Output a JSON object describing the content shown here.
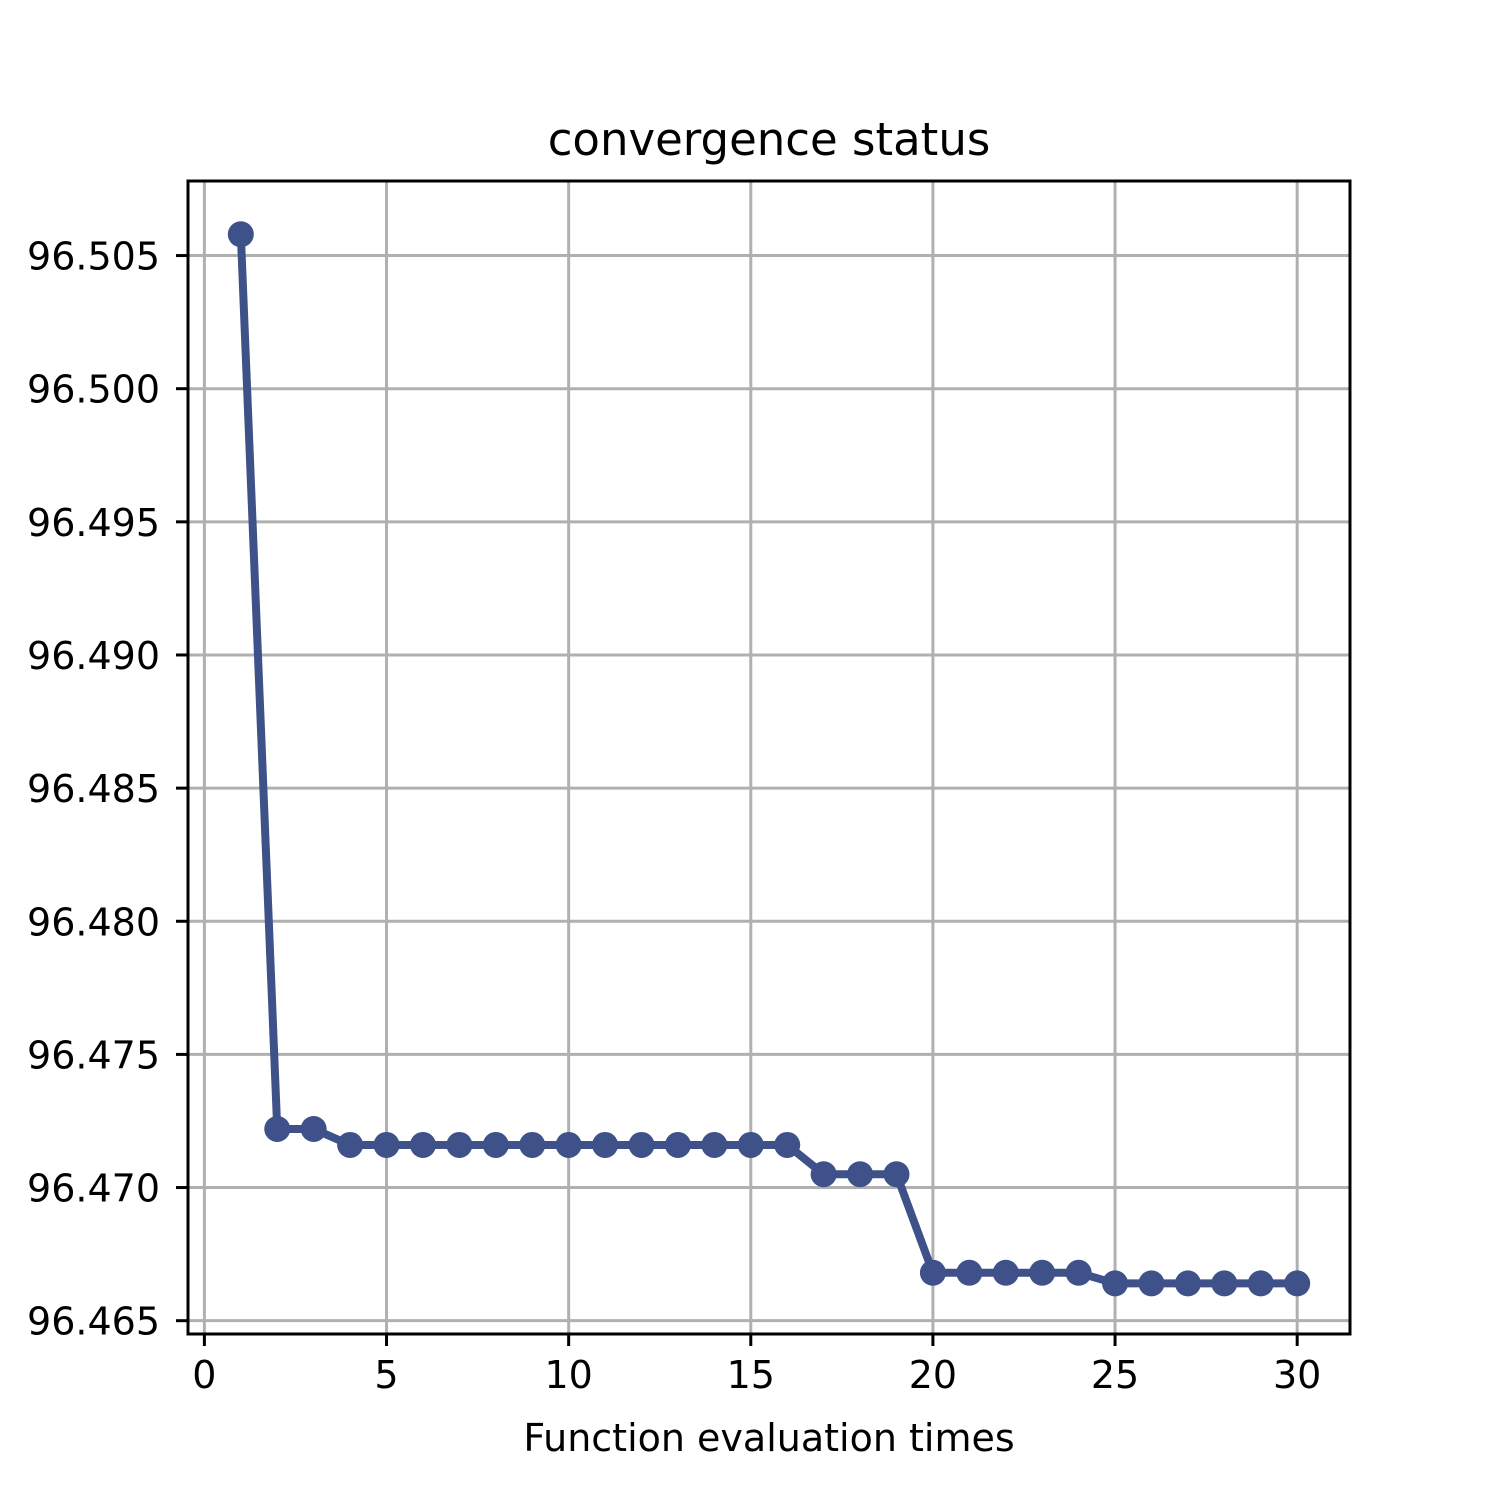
{
  "chart_data": {
    "type": "line",
    "title": "convergence status",
    "xlabel": "Function evaluation times",
    "ylabel": "",
    "x": [
      1,
      2,
      3,
      4,
      5,
      6,
      7,
      8,
      9,
      10,
      11,
      12,
      13,
      14,
      15,
      16,
      17,
      18,
      19,
      20,
      21,
      22,
      23,
      24,
      25,
      26,
      27,
      28,
      29,
      30
    ],
    "series": [
      {
        "values": [
          96.5058,
          96.4722,
          96.4722,
          96.4716,
          96.4716,
          96.4716,
          96.4716,
          96.4716,
          96.4716,
          96.4716,
          96.4716,
          96.4716,
          96.4716,
          96.4716,
          96.4716,
          96.4716,
          96.4705,
          96.4705,
          96.4705,
          96.4668,
          96.4668,
          96.4668,
          96.4668,
          96.4668,
          96.4664,
          96.4664,
          96.4664,
          96.4664,
          96.4664,
          96.4664
        ],
        "color": "#3f5189",
        "marker": "circle"
      }
    ],
    "xlim": [
      -0.45,
      31.45
    ],
    "ylim": [
      96.4645,
      96.5078
    ],
    "xticks": [
      0,
      5,
      10,
      15,
      20,
      25,
      30
    ],
    "xtick_labels": [
      "0",
      "5",
      "10",
      "15",
      "20",
      "25",
      "30"
    ],
    "yticks": [
      96.465,
      96.47,
      96.475,
      96.48,
      96.485,
      96.49,
      96.495,
      96.5,
      96.505
    ],
    "ytick_labels": [
      "96.465",
      "96.470",
      "96.475",
      "96.480",
      "96.485",
      "96.490",
      "96.495",
      "96.500",
      "96.505"
    ],
    "grid": true,
    "legend": "none"
  }
}
